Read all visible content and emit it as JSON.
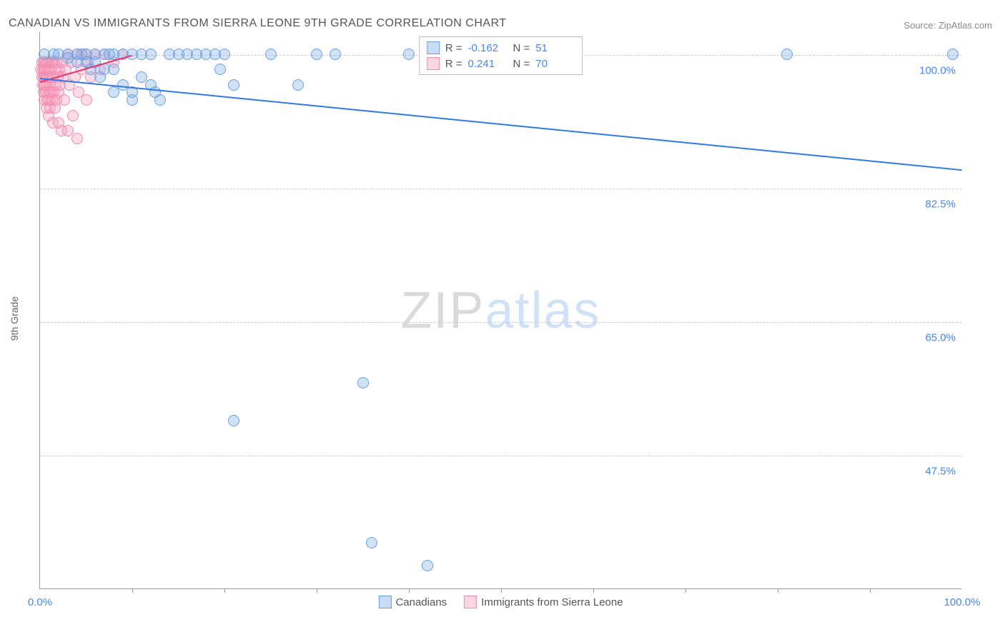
{
  "title": "CANADIAN VS IMMIGRANTS FROM SIERRA LEONE 9TH GRADE CORRELATION CHART",
  "source_label": "Source:",
  "source_value": "ZipAtlas.com",
  "watermark_a": "ZIP",
  "watermark_b": "atlas",
  "axes": {
    "y_label": "9th Grade",
    "y_ticks": [
      {
        "value": 100.0,
        "label": "100.0%"
      },
      {
        "value": 82.5,
        "label": "82.5%"
      },
      {
        "value": 65.0,
        "label": "65.0%"
      },
      {
        "value": 47.5,
        "label": "47.5%"
      }
    ],
    "x_ticks": [
      {
        "value": 0.0,
        "label": "0.0%"
      },
      {
        "value": 100.0,
        "label": "100.0%"
      }
    ],
    "x_mid_ticks": [
      10,
      20,
      30,
      40,
      50,
      60,
      70,
      80,
      90
    ],
    "ylim": [
      30,
      103
    ],
    "xlim": [
      0,
      100
    ]
  },
  "series": {
    "blue": {
      "label": "Canadians",
      "color_fill": "rgba(123,171,232,0.35)",
      "color_stroke": "#6b9fe0",
      "trend_color": "#2e7ae5",
      "R": "-0.162",
      "N": "51",
      "trend": {
        "x1": 0,
        "y1": 97,
        "x2": 100,
        "y2": 85
      },
      "marker_radius": 8,
      "points": [
        {
          "x": 0.5,
          "y": 100
        },
        {
          "x": 1.5,
          "y": 100
        },
        {
          "x": 2,
          "y": 100
        },
        {
          "x": 3,
          "y": 100
        },
        {
          "x": 3,
          "y": 99.5
        },
        {
          "x": 4,
          "y": 100
        },
        {
          "x": 4,
          "y": 99
        },
        {
          "x": 4.5,
          "y": 100
        },
        {
          "x": 5,
          "y": 100
        },
        {
          "x": 5,
          "y": 99
        },
        {
          "x": 5.5,
          "y": 98
        },
        {
          "x": 6,
          "y": 100
        },
        {
          "x": 6,
          "y": 99
        },
        {
          "x": 6.5,
          "y": 97
        },
        {
          "x": 7,
          "y": 100
        },
        {
          "x": 7.5,
          "y": 100
        },
        {
          "x": 7,
          "y": 98
        },
        {
          "x": 8,
          "y": 100
        },
        {
          "x": 8,
          "y": 98
        },
        {
          "x": 8,
          "y": 95
        },
        {
          "x": 9,
          "y": 100
        },
        {
          "x": 9,
          "y": 96
        },
        {
          "x": 10,
          "y": 100
        },
        {
          "x": 10,
          "y": 95
        },
        {
          "x": 10,
          "y": 94
        },
        {
          "x": 11,
          "y": 100
        },
        {
          "x": 11,
          "y": 97
        },
        {
          "x": 12,
          "y": 100
        },
        {
          "x": 12,
          "y": 96
        },
        {
          "x": 12.5,
          "y": 95
        },
        {
          "x": 13,
          "y": 94
        },
        {
          "x": 14,
          "y": 100
        },
        {
          "x": 15,
          "y": 100
        },
        {
          "x": 16,
          "y": 100
        },
        {
          "x": 17,
          "y": 100
        },
        {
          "x": 18,
          "y": 100
        },
        {
          "x": 19,
          "y": 100
        },
        {
          "x": 19.5,
          "y": 98
        },
        {
          "x": 20,
          "y": 100
        },
        {
          "x": 21,
          "y": 96
        },
        {
          "x": 25,
          "y": 100
        },
        {
          "x": 28,
          "y": 96
        },
        {
          "x": 30,
          "y": 100
        },
        {
          "x": 32,
          "y": 100
        },
        {
          "x": 40,
          "y": 100
        },
        {
          "x": 21,
          "y": 52
        },
        {
          "x": 35,
          "y": 57
        },
        {
          "x": 36,
          "y": 36
        },
        {
          "x": 42,
          "y": 33
        },
        {
          "x": 81,
          "y": 100
        },
        {
          "x": 99,
          "y": 100
        }
      ]
    },
    "pink": {
      "label": "Immigrants from Sierra Leone",
      "color_fill": "rgba(248,156,185,0.35)",
      "color_stroke": "#f08bb0",
      "trend_color": "#e8336b",
      "R": "0.241",
      "N": "70",
      "trend": {
        "x1": 0,
        "y1": 96.5,
        "x2": 10,
        "y2": 100
      },
      "marker_radius": 8,
      "points": [
        {
          "x": 0.1,
          "y": 98
        },
        {
          "x": 0.2,
          "y": 97
        },
        {
          "x": 0.2,
          "y": 99
        },
        {
          "x": 0.3,
          "y": 96
        },
        {
          "x": 0.3,
          "y": 98
        },
        {
          "x": 0.4,
          "y": 95
        },
        {
          "x": 0.4,
          "y": 99
        },
        {
          "x": 0.4,
          "y": 97
        },
        {
          "x": 0.5,
          "y": 94
        },
        {
          "x": 0.5,
          "y": 96
        },
        {
          "x": 0.5,
          "y": 98
        },
        {
          "x": 0.6,
          "y": 95
        },
        {
          "x": 0.6,
          "y": 97
        },
        {
          "x": 0.6,
          "y": 99
        },
        {
          "x": 0.7,
          "y": 93
        },
        {
          "x": 0.7,
          "y": 96
        },
        {
          "x": 0.7,
          "y": 98
        },
        {
          "x": 0.8,
          "y": 94
        },
        {
          "x": 0.8,
          "y": 97
        },
        {
          "x": 0.8,
          "y": 99
        },
        {
          "x": 0.9,
          "y": 95
        },
        {
          "x": 0.9,
          "y": 92
        },
        {
          "x": 0.9,
          "y": 98
        },
        {
          "x": 1.0,
          "y": 96
        },
        {
          "x": 1.0,
          "y": 94
        },
        {
          "x": 1.0,
          "y": 99
        },
        {
          "x": 1.1,
          "y": 93
        },
        {
          "x": 1.1,
          "y": 97
        },
        {
          "x": 1.2,
          "y": 95
        },
        {
          "x": 1.2,
          "y": 98
        },
        {
          "x": 1.3,
          "y": 94
        },
        {
          "x": 1.3,
          "y": 99
        },
        {
          "x": 1.4,
          "y": 91
        },
        {
          "x": 1.4,
          "y": 97
        },
        {
          "x": 1.5,
          "y": 95
        },
        {
          "x": 1.5,
          "y": 99
        },
        {
          "x": 1.6,
          "y": 93
        },
        {
          "x": 1.6,
          "y": 98
        },
        {
          "x": 1.7,
          "y": 96
        },
        {
          "x": 1.8,
          "y": 94
        },
        {
          "x": 1.8,
          "y": 99
        },
        {
          "x": 1.9,
          "y": 97
        },
        {
          "x": 2.0,
          "y": 95
        },
        {
          "x": 2.0,
          "y": 91
        },
        {
          "x": 2.1,
          "y": 98
        },
        {
          "x": 2.2,
          "y": 96
        },
        {
          "x": 2.3,
          "y": 90
        },
        {
          "x": 2.4,
          "y": 99
        },
        {
          "x": 2.5,
          "y": 97
        },
        {
          "x": 2.6,
          "y": 94
        },
        {
          "x": 2.8,
          "y": 98
        },
        {
          "x": 3.0,
          "y": 100
        },
        {
          "x": 3.0,
          "y": 90
        },
        {
          "x": 3.2,
          "y": 96
        },
        {
          "x": 3.4,
          "y": 99
        },
        {
          "x": 3.6,
          "y": 92
        },
        {
          "x": 3.8,
          "y": 97
        },
        {
          "x": 4.0,
          "y": 100
        },
        {
          "x": 4.0,
          "y": 89
        },
        {
          "x": 4.2,
          "y": 95
        },
        {
          "x": 4.5,
          "y": 98
        },
        {
          "x": 4.8,
          "y": 100
        },
        {
          "x": 5.0,
          "y": 94
        },
        {
          "x": 5.2,
          "y": 99
        },
        {
          "x": 5.5,
          "y": 97
        },
        {
          "x": 6.0,
          "y": 100
        },
        {
          "x": 6.5,
          "y": 98
        },
        {
          "x": 7.0,
          "y": 100
        },
        {
          "x": 8.0,
          "y": 99
        },
        {
          "x": 9.0,
          "y": 100
        }
      ]
    }
  },
  "legend_top": {
    "R_label": "R =",
    "N_label": "N ="
  }
}
